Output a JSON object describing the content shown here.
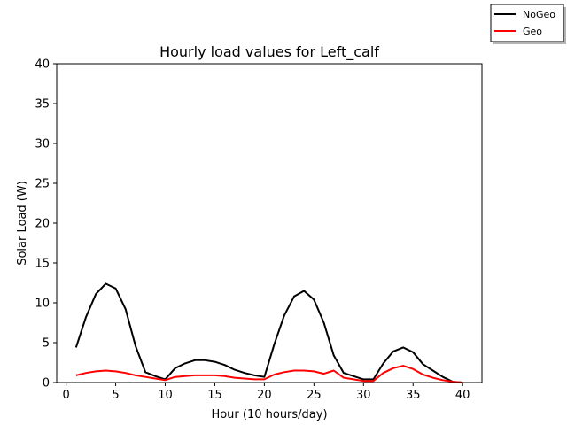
{
  "chart_data": {
    "type": "line",
    "title": "Hourly load values for Left_calf",
    "xlabel": "Hour (10 hours/day)",
    "ylabel": "Solar Load (W)",
    "xlim": [
      -0.95,
      41.95
    ],
    "ylim": [
      0,
      40
    ],
    "xticks": [
      0,
      5,
      10,
      15,
      20,
      25,
      30,
      35,
      40
    ],
    "yticks": [
      0,
      5,
      10,
      15,
      20,
      25,
      30,
      35,
      40
    ],
    "grid": false,
    "legend_position": "top-right, outside plot",
    "x": [
      1,
      2,
      3,
      4,
      5,
      6,
      7,
      8,
      9,
      10,
      11,
      12,
      13,
      14,
      15,
      16,
      17,
      18,
      19,
      20,
      21,
      22,
      23,
      24,
      25,
      26,
      27,
      28,
      29,
      30,
      31,
      32,
      33,
      34,
      35,
      36,
      37,
      38,
      39,
      40
    ],
    "series": [
      {
        "name": "NoGeo",
        "color": "#000000",
        "values": [
          4.4,
          8.2,
          11.1,
          12.4,
          11.8,
          9.2,
          4.6,
          1.3,
          0.8,
          0.4,
          1.8,
          2.4,
          2.8,
          2.8,
          2.6,
          2.2,
          1.6,
          1.2,
          0.9,
          0.7,
          4.8,
          8.4,
          10.8,
          11.5,
          10.4,
          7.5,
          3.4,
          1.2,
          0.8,
          0.4,
          0.4,
          2.4,
          3.9,
          4.4,
          3.8,
          2.3,
          1.5,
          0.7,
          0.1,
          0.0
        ]
      },
      {
        "name": "Geo",
        "color": "#ff0000",
        "values": [
          0.9,
          1.2,
          1.4,
          1.5,
          1.4,
          1.2,
          0.9,
          0.7,
          0.5,
          0.3,
          0.7,
          0.8,
          0.9,
          0.9,
          0.9,
          0.8,
          0.6,
          0.5,
          0.4,
          0.4,
          1.0,
          1.3,
          1.5,
          1.5,
          1.4,
          1.1,
          1.5,
          0.6,
          0.4,
          0.2,
          0.2,
          1.2,
          1.8,
          2.1,
          1.7,
          1.0,
          0.6,
          0.3,
          0.1,
          0.0
        ]
      }
    ]
  }
}
